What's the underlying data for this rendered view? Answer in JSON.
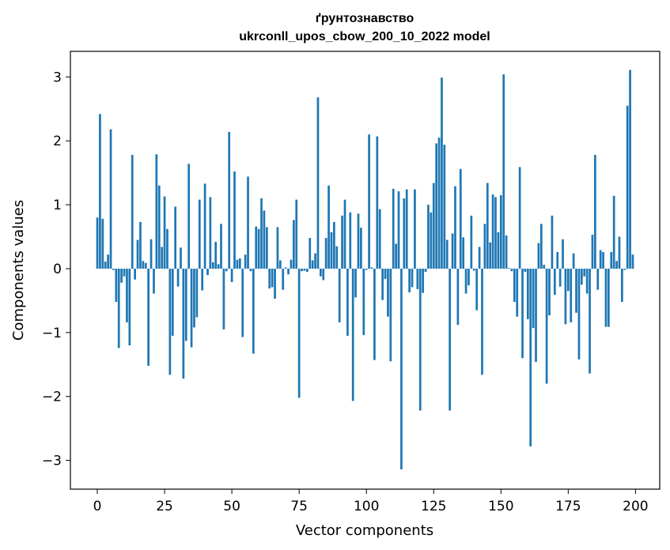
{
  "chart_data": {
    "type": "bar",
    "title": "ґрунтознавство",
    "subtitle": "ukrconll_upos_cbow_200_10_2022 model",
    "xlabel": "Vector components",
    "ylabel": "Components values",
    "xlim": [
      -10,
      209
    ],
    "ylim": [
      -3.45,
      3.4
    ],
    "xticks": [
      0,
      25,
      50,
      75,
      100,
      125,
      150,
      175,
      200
    ],
    "yticks": [
      -3,
      -2,
      -1,
      0,
      1,
      2,
      3
    ],
    "bar_color": "#1f77b4",
    "values": [
      0.8,
      2.42,
      0.78,
      0.11,
      0.22,
      2.18,
      -0.02,
      -0.52,
      -1.24,
      -0.22,
      -0.12,
      -0.84,
      -1.2,
      1.78,
      -0.17,
      0.45,
      0.73,
      0.12,
      0.09,
      -1.52,
      0.46,
      -0.39,
      1.79,
      1.3,
      0.34,
      1.13,
      0.62,
      -1.66,
      -1.05,
      0.97,
      -0.28,
      0.33,
      -1.72,
      -1.13,
      1.64,
      -1.23,
      -0.92,
      -0.76,
      1.08,
      -0.34,
      1.33,
      -0.1,
      1.12,
      0.1,
      0.42,
      0.07,
      0.7,
      -0.95,
      -0.04,
      2.14,
      -0.21,
      1.52,
      0.14,
      0.16,
      -1.07,
      0.22,
      1.44,
      -0.04,
      -1.33,
      0.66,
      0.62,
      1.1,
      0.91,
      0.65,
      -0.31,
      -0.29,
      -0.47,
      0.65,
      0.13,
      -0.33,
      0.02,
      -0.09,
      0.14,
      0.76,
      1.08,
      -2.02,
      -0.04,
      -0.03,
      -0.05,
      0.48,
      0.13,
      0.24,
      2.68,
      -0.12,
      -0.18,
      0.48,
      1.3,
      0.57,
      0.73,
      0.35,
      -0.84,
      0.83,
      1.08,
      -1.05,
      0.88,
      -2.07,
      -0.45,
      0.86,
      0.64,
      -1.04,
      -0.02,
      2.1,
      0.02,
      -1.43,
      2.07,
      0.93,
      -0.49,
      -0.16,
      -0.75,
      -1.45,
      1.25,
      0.39,
      1.21,
      -3.14,
      1.1,
      1.24,
      -0.37,
      -0.29,
      1.24,
      -0.32,
      -2.22,
      -0.38,
      -0.05,
      1.0,
      0.88,
      1.34,
      1.96,
      2.05,
      2.99,
      1.94,
      0.45,
      -2.22,
      0.55,
      1.29,
      -0.88,
      1.56,
      0.49,
      -0.39,
      -0.26,
      0.83,
      -0.03,
      -0.65,
      0.34,
      -1.66,
      0.7,
      1.34,
      0.41,
      1.16,
      1.12,
      0.57,
      1.15,
      3.04,
      0.52,
      0.01,
      -0.04,
      -0.52,
      -0.75,
      1.59,
      -1.4,
      -0.05,
      -0.79,
      -2.78,
      -0.93,
      -1.46,
      0.4,
      0.7,
      0.06,
      -1.8,
      -0.73,
      0.83,
      -0.41,
      0.26,
      -0.28,
      0.46,
      -0.87,
      -0.35,
      -0.84,
      0.24,
      -0.69,
      -1.42,
      -0.25,
      -0.12,
      -0.39,
      -1.64,
      0.53,
      1.78,
      -0.33,
      0.29,
      0.26,
      -0.91,
      -0.91,
      0.26,
      1.14,
      0.12,
      0.5,
      -0.52,
      -0.02,
      2.55,
      3.11,
      0.22
    ]
  }
}
